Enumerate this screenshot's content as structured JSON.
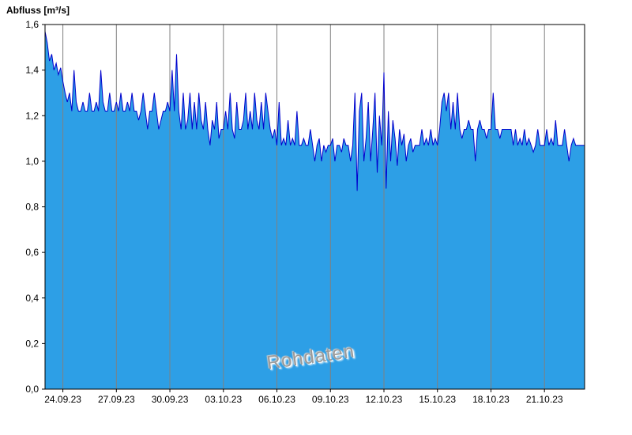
{
  "chart_data": {
    "type": "area",
    "ylabel": "Abfluss [m³/s]",
    "watermark": "Rohdaten",
    "ylim": [
      0,
      1.6
    ],
    "grid": "vertical-only",
    "legend": "none",
    "colors": {
      "fill": "#2D9FE6",
      "line": "#0000CD",
      "grid": "#808080",
      "axis": "#000000",
      "background": "#FFFFFF"
    },
    "y_ticks": [
      {
        "value": 0.0,
        "label": "0,0"
      },
      {
        "value": 0.2,
        "label": "0,2"
      },
      {
        "value": 0.4,
        "label": "0,4"
      },
      {
        "value": 0.6,
        "label": "0,6"
      },
      {
        "value": 0.8,
        "label": "0,8"
      },
      {
        "value": 1.0,
        "label": "1,0"
      },
      {
        "value": 1.2,
        "label": "1,2"
      },
      {
        "value": 1.4,
        "label": "1,4"
      },
      {
        "value": 1.6,
        "label": "1,6"
      }
    ],
    "x_ticks": [
      {
        "day": 1,
        "label": "24.09.23"
      },
      {
        "day": 4,
        "label": "27.09.23"
      },
      {
        "day": 7,
        "label": "30.09.23"
      },
      {
        "day": 10,
        "label": "03.10.23"
      },
      {
        "day": 13,
        "label": "06.10.23"
      },
      {
        "day": 16,
        "label": "09.10.23"
      },
      {
        "day": 19,
        "label": "12.10.23"
      },
      {
        "day": 22,
        "label": "15.10.23"
      },
      {
        "day": 25,
        "label": "18.10.23"
      },
      {
        "day": 28,
        "label": "21.10.23"
      }
    ],
    "samples_per_day": 8,
    "values": [
      1.57,
      1.52,
      1.44,
      1.47,
      1.4,
      1.43,
      1.38,
      1.41,
      1.35,
      1.3,
      1.26,
      1.3,
      1.22,
      1.4,
      1.26,
      1.22,
      1.22,
      1.26,
      1.22,
      1.22,
      1.3,
      1.22,
      1.22,
      1.26,
      1.22,
      1.4,
      1.26,
      1.22,
      1.22,
      1.3,
      1.22,
      1.22,
      1.26,
      1.22,
      1.3,
      1.22,
      1.22,
      1.26,
      1.22,
      1.3,
      1.22,
      1.22,
      1.18,
      1.22,
      1.3,
      1.22,
      1.14,
      1.22,
      1.22,
      1.3,
      1.22,
      1.14,
      1.18,
      1.22,
      1.22,
      1.26,
      1.22,
      1.4,
      1.22,
      1.47,
      1.22,
      1.14,
      1.3,
      1.14,
      1.18,
      1.3,
      1.14,
      1.26,
      1.14,
      1.3,
      1.18,
      1.14,
      1.26,
      1.14,
      1.07,
      1.18,
      1.14,
      1.26,
      1.1,
      1.14,
      1.14,
      1.22,
      1.14,
      1.3,
      1.14,
      1.1,
      1.26,
      1.14,
      1.14,
      1.18,
      1.3,
      1.14,
      1.22,
      1.14,
      1.3,
      1.18,
      1.14,
      1.26,
      1.14,
      1.3,
      1.22,
      1.14,
      1.1,
      1.14,
      1.07,
      1.26,
      1.07,
      1.1,
      1.07,
      1.18,
      1.07,
      1.1,
      1.07,
      1.22,
      1.07,
      1.07,
      1.1,
      1.07,
      1.07,
      1.14,
      1.07,
      1.0,
      1.07,
      1.1,
      1.0,
      1.07,
      1.04,
      1.07,
      1.07,
      1.1,
      1.0,
      1.07,
      1.07,
      1.04,
      1.1,
      1.07,
      1.07,
      1.0,
      1.07,
      1.3,
      0.87,
      1.22,
      1.3,
      1.0,
      1.1,
      1.26,
      1.0,
      1.14,
      1.3,
      0.95,
      1.2,
      1.07,
      1.39,
      0.88,
      1.22,
      1.0,
      1.18,
      1.1,
      0.98,
      1.14,
      1.07,
      1.12,
      1.0,
      1.07,
      1.1,
      1.04,
      1.07,
      1.07,
      1.07,
      1.14,
      1.07,
      1.1,
      1.07,
      1.14,
      1.07,
      1.1,
      1.07,
      1.14,
      1.26,
      1.3,
      1.22,
      1.3,
      1.14,
      1.26,
      1.14,
      1.3,
      1.14,
      1.1,
      1.14,
      1.14,
      1.18,
      1.14,
      1.14,
      1.0,
      1.14,
      1.18,
      1.14,
      1.14,
      1.1,
      1.14,
      1.14,
      1.3,
      1.14,
      1.14,
      1.1,
      1.14,
      1.14,
      1.14,
      1.14,
      1.14,
      1.07,
      1.14,
      1.07,
      1.1,
      1.07,
      1.14,
      1.07,
      1.1,
      1.07,
      1.04,
      1.07,
      1.14,
      1.07,
      1.07,
      1.07,
      1.14,
      1.07,
      1.1,
      1.07,
      1.18,
      1.07,
      1.07,
      1.07,
      1.14,
      1.07,
      1.0,
      1.07,
      1.1,
      1.07,
      1.07,
      1.07,
      1.07,
      1.07
    ]
  }
}
